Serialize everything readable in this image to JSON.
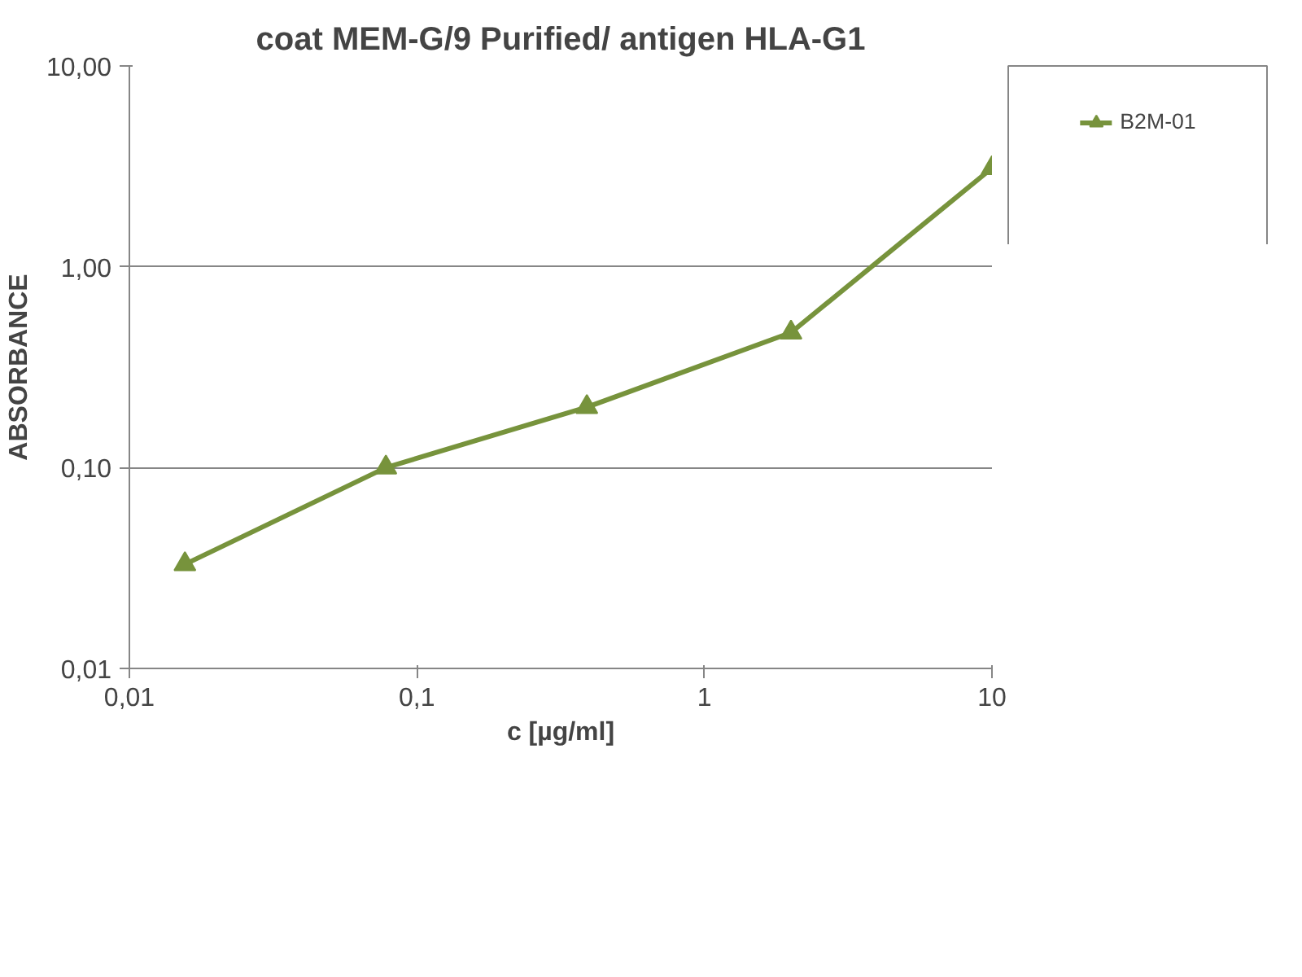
{
  "chart_data": {
    "type": "line",
    "title": "coat MEM-G/9 Purified/ antigen HLA-G1",
    "xlabel": "c [µg/ml]",
    "ylabel": "ABSORBANCE",
    "log": "xy",
    "x": [
      0.0156,
      0.078,
      0.39,
      2,
      10
    ],
    "series": [
      {
        "name": "B2M-01",
        "color": "#77933c",
        "values": [
          0.033,
          0.1,
          0.2,
          0.47,
          3.1
        ]
      }
    ],
    "xlim": [
      0.01,
      10
    ],
    "ylim": [
      0.01,
      10
    ],
    "xticks": [
      {
        "value": 0.01,
        "label": "0,01"
      },
      {
        "value": 0.1,
        "label": "0,1"
      },
      1,
      10
    ],
    "yticks": [
      {
        "value": 0.01,
        "label": "0,01"
      },
      {
        "value": 0.1,
        "label": "0,10"
      },
      {
        "value": 1,
        "label": "1,00"
      },
      {
        "value": 10,
        "label": "10,00"
      }
    ],
    "grid": "y",
    "legend": "right",
    "marker": "triangle",
    "line_style": "solid"
  }
}
